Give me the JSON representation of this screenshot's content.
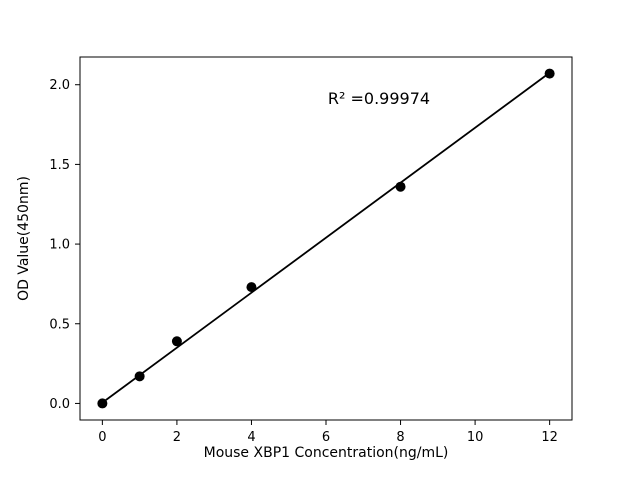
{
  "figure": {
    "aria_label": "Standard curve scatter plot with linear fit"
  },
  "chart_data": {
    "type": "scatter",
    "title": "",
    "xlabel": "Mouse XBP1 Concentration(ng/mL)",
    "ylabel": "OD Value(450nm)",
    "x": [
      0,
      1,
      2,
      4,
      8,
      12
    ],
    "y": [
      0.0,
      0.17,
      0.39,
      0.73,
      1.36,
      2.07
    ],
    "fit_line": {
      "x1": 0,
      "y1": 0.005,
      "x2": 12,
      "y2": 2.075
    },
    "annotation": {
      "text": "R² =0.99974",
      "x": 6.05,
      "y": 1.88
    },
    "xlim": [
      -0.6,
      12.6
    ],
    "ylim": [
      -0.104,
      2.174
    ],
    "xticks": [
      0,
      2,
      4,
      6,
      8,
      10,
      12
    ],
    "xtick_labels": [
      "0",
      "2",
      "4",
      "6",
      "8",
      "10",
      "12"
    ],
    "yticks": [
      0.0,
      0.5,
      1.0,
      1.5,
      2.0
    ],
    "ytick_labels": [
      "0.0",
      "0.5",
      "1.0",
      "1.5",
      "2.0"
    ],
    "grid": false,
    "legend": null,
    "marker_color": "#000000",
    "line_color": "#000000",
    "axis_color": "#000000",
    "background": "#ffffff"
  }
}
